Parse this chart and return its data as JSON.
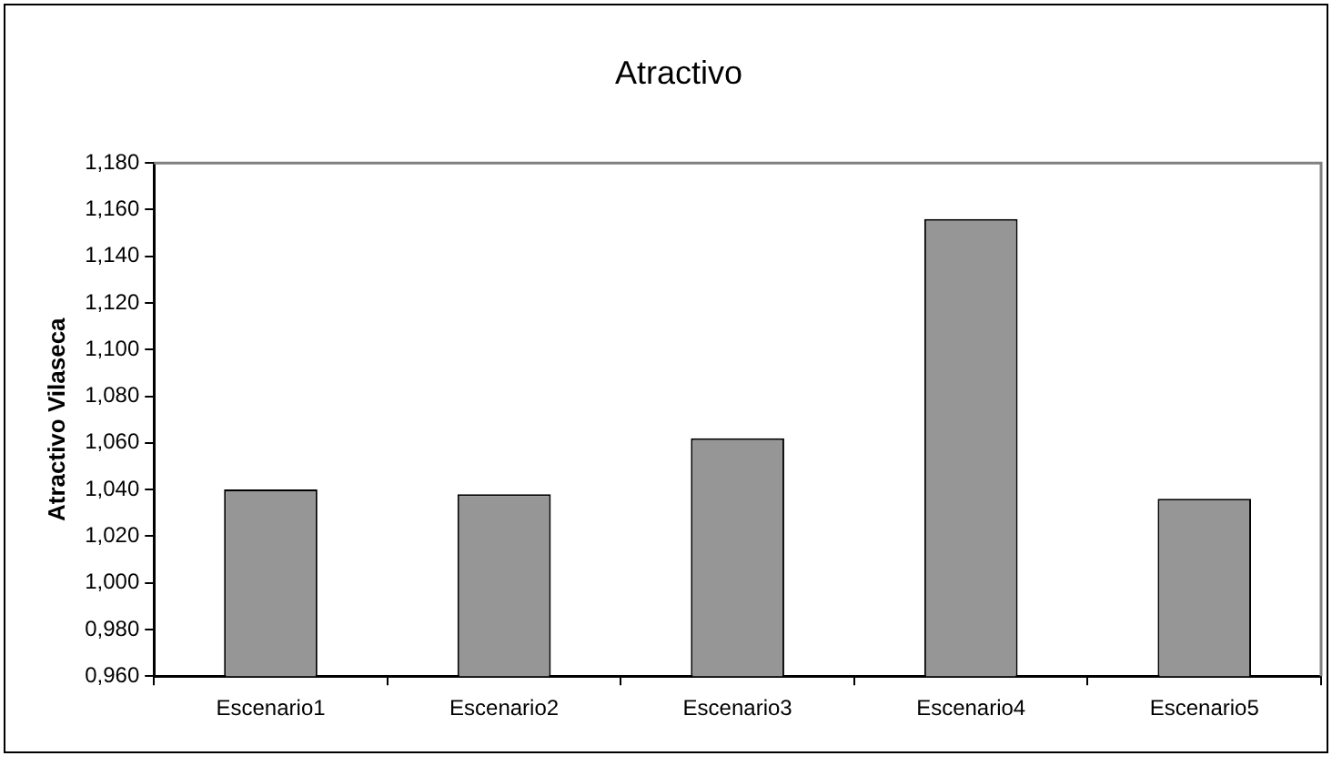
{
  "chart_data": {
    "type": "bar",
    "title": "Atractivo",
    "ylabel": "Atractivo Vilaseca",
    "categories": [
      "Escenario1",
      "Escenario2",
      "Escenario3",
      "Escenario4",
      "Escenario5"
    ],
    "values": [
      1.04,
      1.038,
      1.062,
      1.156,
      1.036
    ],
    "color": "#969696",
    "ylim": [
      0.96,
      1.18
    ],
    "yticks": [
      {
        "value": 0.96,
        "label": "0,960"
      },
      {
        "value": 0.98,
        "label": "0,980"
      },
      {
        "value": 1.0,
        "label": "1,000"
      },
      {
        "value": 1.02,
        "label": "1,020"
      },
      {
        "value": 1.04,
        "label": "1,040"
      },
      {
        "value": 1.06,
        "label": "1,060"
      },
      {
        "value": 1.08,
        "label": "1,080"
      },
      {
        "value": 1.1,
        "label": "1,100"
      },
      {
        "value": 1.12,
        "label": "1,120"
      },
      {
        "value": 1.14,
        "label": "1,140"
      },
      {
        "value": 1.16,
        "label": "1,160"
      },
      {
        "value": 1.18,
        "label": "1,180"
      }
    ],
    "grid": false,
    "legend": false
  }
}
